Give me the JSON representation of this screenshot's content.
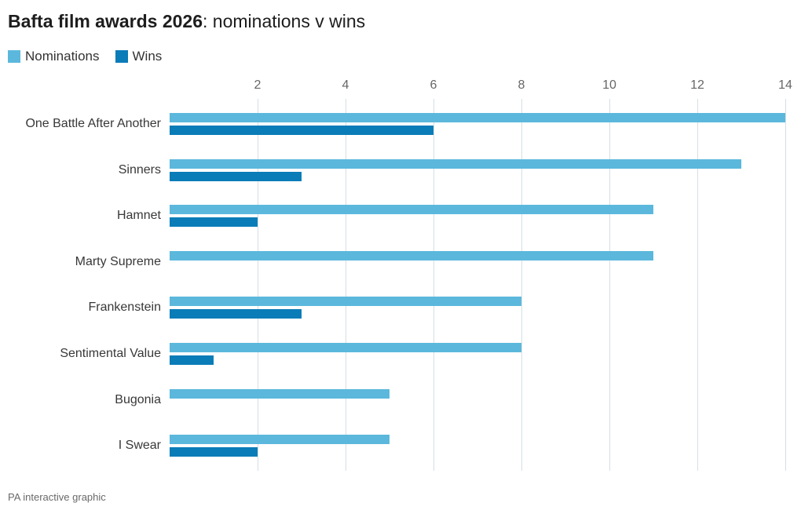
{
  "title": {
    "bold": "Bafta film awards 2026",
    "rest": ": nominations v wins"
  },
  "legend": [
    {
      "label": "Nominations",
      "color": "#5bb8dc"
    },
    {
      "label": "Wins",
      "color": "#0a7cb8"
    }
  ],
  "footer": "PA interactive graphic",
  "colors": {
    "nominations": "#5bb8dc",
    "wins": "#0a7cb8",
    "gridline": "#d6dfe5"
  },
  "chart_data": {
    "type": "bar",
    "orientation": "horizontal",
    "title": "Bafta film awards 2026: nominations v wins",
    "categories": [
      "One Battle After Another",
      "Sinners",
      "Hamnet",
      "Marty Supreme",
      "Frankenstein",
      "Sentimental Value",
      "Bugonia",
      "I Swear"
    ],
    "series": [
      {
        "name": "Nominations",
        "values": [
          14,
          13,
          11,
          11,
          8,
          8,
          5,
          5
        ]
      },
      {
        "name": "Wins",
        "values": [
          6,
          3,
          2,
          0,
          3,
          1,
          0,
          2
        ]
      }
    ],
    "x_ticks": [
      2,
      4,
      6,
      8,
      10,
      12,
      14
    ],
    "xlim": [
      0,
      14
    ],
    "xlabel": "",
    "ylabel": "",
    "grid": "vertical",
    "legend_position": "top-left"
  }
}
